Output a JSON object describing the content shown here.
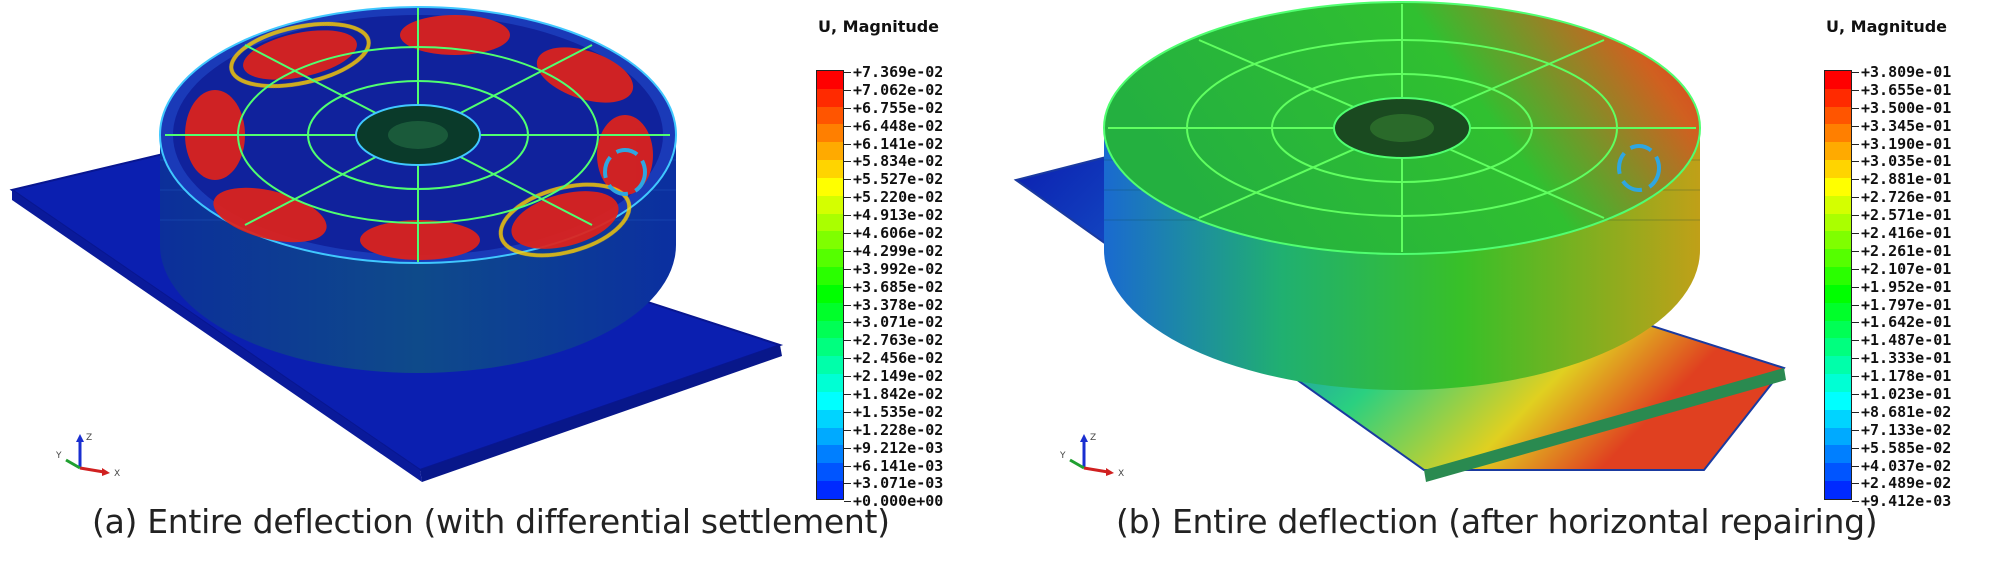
{
  "panels": [
    {
      "legend_title": "U, Magnitude",
      "ticks": [
        "+7.369e-02",
        "+7.062e-02",
        "+6.755e-02",
        "+6.448e-02",
        "+6.141e-02",
        "+5.834e-02",
        "+5.527e-02",
        "+5.220e-02",
        "+4.913e-02",
        "+4.606e-02",
        "+4.299e-02",
        "+3.992e-02",
        "+3.685e-02",
        "+3.378e-02",
        "+3.071e-02",
        "+2.763e-02",
        "+2.456e-02",
        "+2.149e-02",
        "+1.842e-02",
        "+1.535e-02",
        "+1.228e-02",
        "+9.212e-03",
        "+6.141e-03",
        "+3.071e-03",
        "+0.000e+00"
      ],
      "caption": "(a) Entire deflection (with differential settlement)",
      "triad_labels": [
        "Y",
        "Z",
        "X"
      ]
    },
    {
      "legend_title": "U, Magnitude",
      "ticks": [
        "+3.809e-01",
        "+3.655e-01",
        "+3.500e-01",
        "+3.345e-01",
        "+3.190e-01",
        "+3.035e-01",
        "+2.881e-01",
        "+2.726e-01",
        "+2.571e-01",
        "+2.416e-01",
        "+2.261e-01",
        "+2.107e-01",
        "+1.952e-01",
        "+1.797e-01",
        "+1.642e-01",
        "+1.487e-01",
        "+1.333e-01",
        "+1.178e-01",
        "+1.023e-01",
        "+8.681e-02",
        "+7.133e-02",
        "+5.585e-02",
        "+4.037e-02",
        "+2.489e-02",
        "+9.412e-03"
      ],
      "caption": "(b) Entire deflection (after horizontal repairing)",
      "triad_labels": [
        "Y",
        "Z",
        "X"
      ]
    }
  ],
  "colors": {
    "bands": [
      "#ff0000",
      "#ff2a00",
      "#ff5500",
      "#ff7f00",
      "#ffaa00",
      "#ffd400",
      "#ffff00",
      "#d4ff00",
      "#aaff00",
      "#7fff00",
      "#55ff00",
      "#2aff00",
      "#00ff00",
      "#00ff2a",
      "#00ff55",
      "#00ff7f",
      "#00ffaa",
      "#00ffd4",
      "#00ffff",
      "#00d4ff",
      "#00aaff",
      "#007fff",
      "#0055ff",
      "#002aff"
    ],
    "model_blue": "#0b1fb0",
    "marker": "#2fa6e0"
  }
}
